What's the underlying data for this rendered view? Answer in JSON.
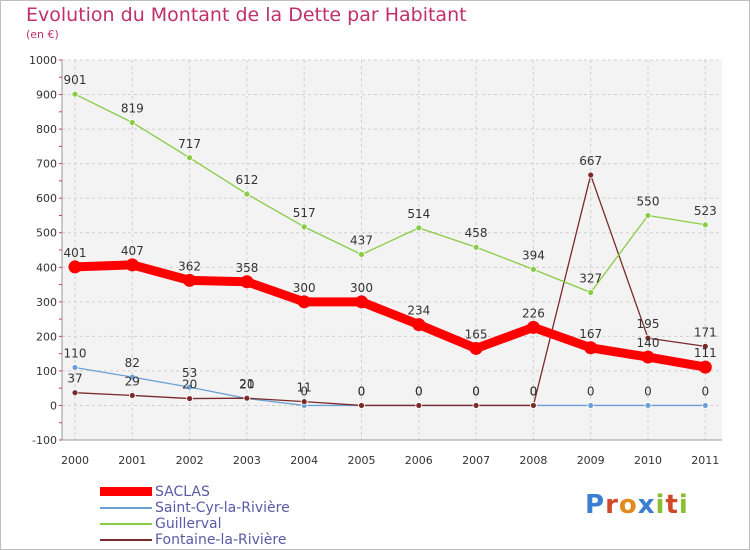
{
  "title": "Evolution du Montant de la Dette par Habitant",
  "unit": "(en €)",
  "logo": "Proxiti",
  "chart_data": {
    "type": "line",
    "title": "Evolution du Montant de la Dette par Habitant",
    "ylabel": "(en €)",
    "xlabel": "",
    "categories": [
      "2000",
      "2001",
      "2002",
      "2003",
      "2004",
      "2005",
      "2006",
      "2007",
      "2008",
      "2009",
      "2010",
      "2011"
    ],
    "ylim": [
      -100,
      1000
    ],
    "yticks": [
      -100,
      0,
      100,
      200,
      300,
      400,
      500,
      600,
      700,
      800,
      900,
      1000
    ],
    "grid": true,
    "series": [
      {
        "name": "SACLAS",
        "color": "#ff0000",
        "values": [
          401,
          407,
          362,
          358,
          300,
          300,
          234,
          165,
          226,
          167,
          140,
          111
        ],
        "labels": [
          "401",
          "407",
          "362",
          "358",
          "300",
          "300",
          "234",
          "165",
          "226",
          "167",
          "140",
          "111"
        ]
      },
      {
        "name": "Saint-Cyr-la-Rivière",
        "color": "#6b9fd4",
        "values": [
          110,
          82,
          53,
          20,
          0,
          0,
          0,
          0,
          0,
          0,
          0,
          0
        ],
        "labels": [
          "110",
          "82",
          "53",
          "20",
          "0",
          "0",
          "0",
          "0",
          "0",
          "0",
          "0",
          "0"
        ]
      },
      {
        "name": "Guillerval",
        "color": "#88cc44",
        "values": [
          901,
          819,
          717,
          612,
          517,
          437,
          514,
          458,
          394,
          327,
          550,
          523
        ],
        "labels": [
          "901",
          "819",
          "717",
          "612",
          "517",
          "437",
          "514",
          "458",
          "394",
          "327",
          "550",
          "523"
        ]
      },
      {
        "name": "Fontaine-la-Rivière",
        "color": "#7a2a2a",
        "values": [
          37,
          29,
          20,
          21,
          11,
          0,
          0,
          0,
          0,
          667,
          195,
          171
        ],
        "labels": [
          "37",
          "29",
          "20",
          "21",
          "11",
          "0",
          "0",
          "0",
          "0",
          "667",
          "195",
          "171"
        ]
      }
    ]
  }
}
